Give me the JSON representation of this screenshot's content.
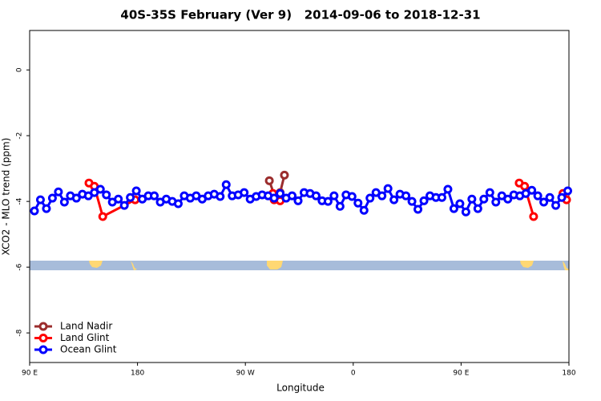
{
  "chart_data": {
    "type": "line",
    "title": "40S-35S February (Ver 9)   2014-09-06 to 2018-12-31",
    "xlabel": "Longitude",
    "ylabel": "XCO2 - MLO trend (ppm)",
    "xlim": [
      90,
      540
    ],
    "ylim": [
      -8.9,
      1.2
    ],
    "xticks": [
      {
        "value": 90,
        "label": "90 E"
      },
      180,
      {
        "value": 270,
        "label": "90 W"
      },
      {
        "value": 360,
        "label": "0"
      },
      {
        "value": 450,
        "label": "90 E"
      },
      {
        "value": 540,
        "label": "180"
      }
    ],
    "yticks": [
      0,
      -2,
      -4,
      -6,
      -8
    ],
    "legend": "bottomleft",
    "series": [
      {
        "name": "Land Nadir",
        "color": "#9b2d2d",
        "x": [
          290,
          294.5,
          299,
          302.6
        ],
        "values": [
          -3.37,
          -3.85,
          -3.73,
          -3.2
        ]
      },
      {
        "name": "Land Glint",
        "color": "#ff0000",
        "x": [
          139.5,
          144,
          151,
          178,
          null,
          293,
          294,
          299,
          null,
          498.5,
          503,
          510.5,
          null,
          535,
          538
        ],
        "values": [
          -3.44,
          -3.54,
          -4.46,
          -3.95,
          null,
          -3.76,
          -3.95,
          -3.98,
          null,
          -3.44,
          -3.54,
          -4.46,
          null,
          -3.76,
          -3.95
        ]
      },
      {
        "name": "Ocean Glint",
        "color": "#0000ff",
        "x": [
          94,
          99,
          104,
          109,
          114,
          119,
          124,
          129,
          134,
          139,
          144,
          149,
          154,
          159,
          164,
          169,
          174,
          179,
          184,
          189,
          194,
          199,
          204,
          209,
          214,
          219,
          224,
          229,
          234,
          239,
          244,
          249,
          254,
          259,
          264,
          269,
          274,
          279,
          284,
          289,
          294,
          299,
          304,
          309,
          314,
          319,
          324,
          329,
          334,
          339,
          344,
          349,
          354,
          359,
          364,
          369,
          374,
          379,
          384,
          389,
          394,
          399,
          404,
          409,
          414,
          419,
          424,
          429,
          434,
          439,
          444,
          449,
          454,
          459,
          464,
          469,
          474,
          479,
          484,
          489,
          494,
          499,
          504,
          509,
          514,
          519,
          524,
          529,
          534,
          539
        ],
        "values": [
          -4.29,
          -3.95,
          -4.22,
          -3.9,
          -3.71,
          -4.02,
          -3.83,
          -3.9,
          -3.78,
          -3.83,
          -3.73,
          -3.63,
          -3.8,
          -4.02,
          -3.93,
          -4.12,
          -3.88,
          -3.68,
          -3.93,
          -3.83,
          -3.83,
          -4.02,
          -3.93,
          -4.0,
          -4.07,
          -3.83,
          -3.9,
          -3.83,
          -3.93,
          -3.83,
          -3.78,
          -3.85,
          -3.49,
          -3.83,
          -3.8,
          -3.73,
          -3.93,
          -3.85,
          -3.8,
          -3.83,
          -3.9,
          -3.76,
          -3.9,
          -3.83,
          -3.98,
          -3.73,
          -3.76,
          -3.83,
          -3.98,
          -4.0,
          -3.83,
          -4.15,
          -3.8,
          -3.85,
          -4.05,
          -4.27,
          -3.9,
          -3.73,
          -3.83,
          -3.61,
          -3.95,
          -3.78,
          -3.83,
          -4.0,
          -4.24,
          -3.98,
          -3.83,
          -3.88,
          -3.88,
          -3.63,
          -4.22,
          -4.07,
          -4.32,
          -3.93,
          -4.22,
          -3.93,
          -3.73,
          -4.02,
          -3.83,
          -3.93,
          -3.8,
          -3.83,
          -3.76,
          -3.66,
          -3.83,
          -4.02,
          -3.88,
          -4.12,
          -3.88,
          -3.68
        ]
      }
    ]
  }
}
